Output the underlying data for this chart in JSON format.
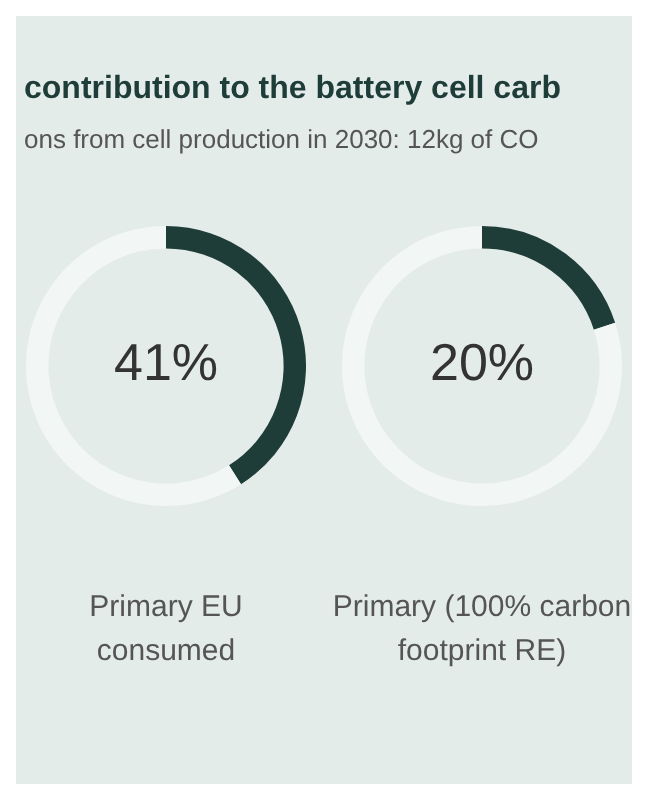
{
  "chart_data": [
    {
      "type": "donut",
      "title": "contribution to the battery cell carb",
      "subtitle": "ons from cell production in 2030: 12kg of CO",
      "categories": [
        null,
        null
      ],
      "values": [
        41,
        59
      ],
      "colors": [
        "#1f3d38",
        "#f2f6f5"
      ],
      "value_labels": [
        "41%",
        null
      ],
      "xlabel": "Primary EU consumed",
      "legend": false
    },
    {
      "type": "donut",
      "categories": [
        null,
        null
      ],
      "values": [
        20,
        80
      ],
      "colors": [
        "#1f3d38",
        "#f2f6f5"
      ],
      "value_labels": [
        "20%",
        null
      ],
      "xlabel": "Primary (100% carbon footprint RE)",
      "legend": false
    }
  ]
}
